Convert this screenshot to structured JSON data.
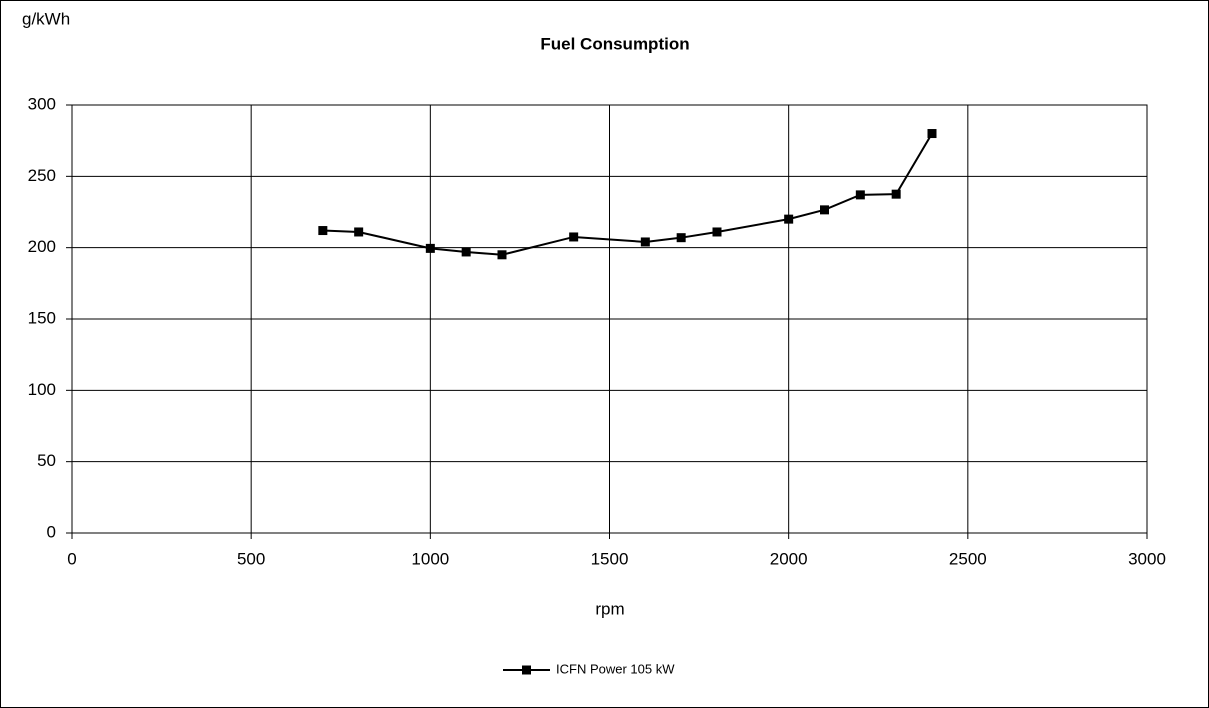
{
  "chart_data": {
    "type": "line",
    "title": "Fuel Consumption",
    "x_label": "rpm",
    "y_label": "g/kWh",
    "x": [
      700,
      800,
      1000,
      1100,
      1200,
      1400,
      1600,
      1700,
      1800,
      2000,
      2100,
      2200,
      2300,
      2400
    ],
    "series": [
      {
        "name": "ICFN Power 105 kW",
        "color": "#000000",
        "values": [
          212,
          211,
          199.5,
          197,
          195,
          207.5,
          204,
          207,
          211,
          220,
          226.5,
          237,
          237.5,
          280
        ]
      }
    ],
    "xlim": [
      0,
      3000
    ],
    "xticks": [
      0,
      500,
      1000,
      1500,
      2000,
      2500,
      3000
    ],
    "ylim": [
      0,
      300
    ],
    "yticks": [
      0,
      50,
      100,
      150,
      200,
      250,
      300
    ],
    "grid": true,
    "legend": "bottom"
  }
}
